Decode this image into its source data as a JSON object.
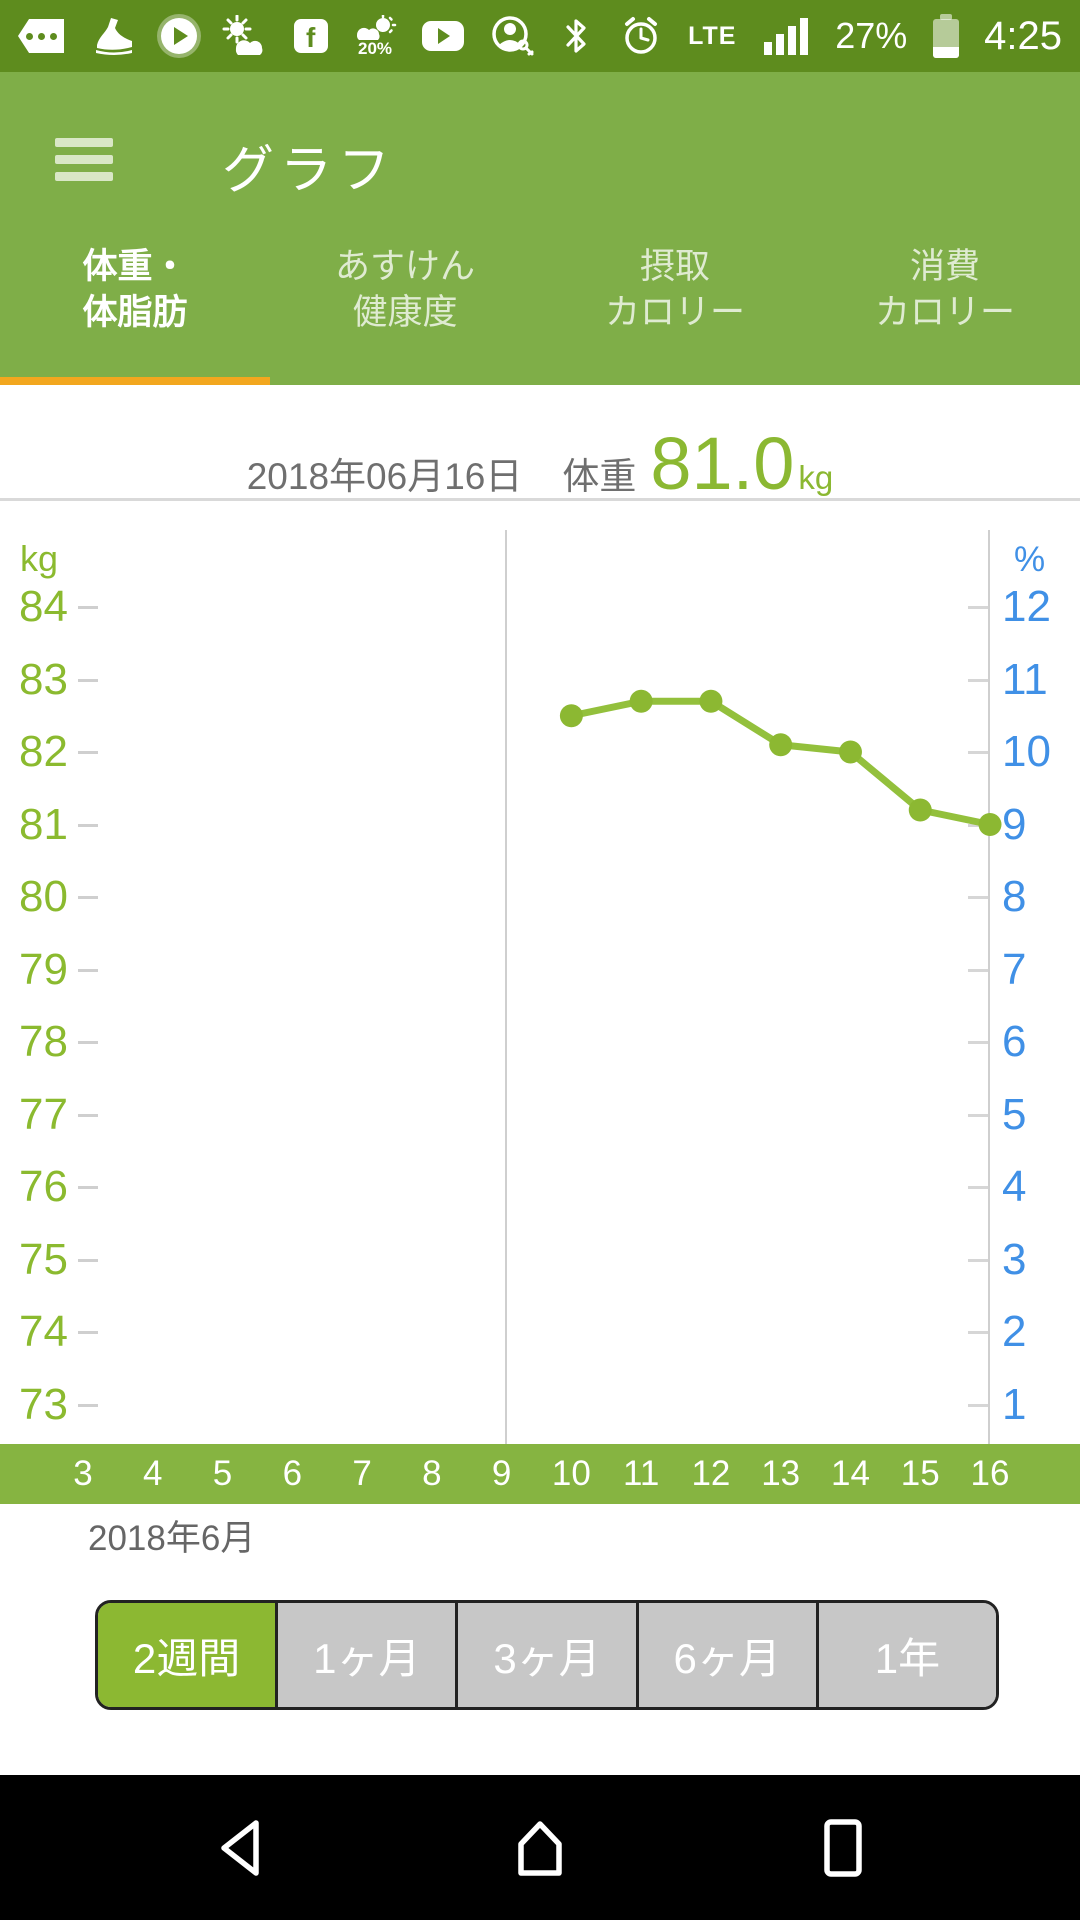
{
  "status_bar": {
    "time": "4:25",
    "battery_percent": "27%",
    "network": "LTE",
    "precipitation": "20%",
    "facebook_letter": "f",
    "icons": [
      "message-dots-icon",
      "shoe-steps-icon",
      "play-circle-icon",
      "sun-cloud-weather-icon",
      "facebook-icon",
      "weather-forecast-20-icon",
      "youtube-icon",
      "account-key-icon",
      "bluetooth-icon",
      "alarm-clock-icon",
      "lte-label",
      "signal-strength-icon",
      "battery-icon"
    ]
  },
  "header": {
    "title": "グラフ"
  },
  "tabs": [
    {
      "id": "weight-bodyfat",
      "label_line1": "体重・",
      "label_line2": "体脂肪",
      "active": true
    },
    {
      "id": "asken-health",
      "label_line1": "あすけん",
      "label_line2": "健康度",
      "active": false
    },
    {
      "id": "intake-calories",
      "label_line1": "摂取",
      "label_line2": "カロリー",
      "active": false
    },
    {
      "id": "burned-calories",
      "label_line1": "消費",
      "label_line2": "カロリー",
      "active": false
    }
  ],
  "summary": {
    "date": "2018年06月16日",
    "weight_label": "体重",
    "weight_value": "81.0",
    "weight_unit": "kg"
  },
  "chart_data": {
    "type": "line",
    "series": [
      {
        "name": "体重",
        "unit": "kg",
        "color": "#8cb832",
        "x": [
          10,
          11,
          12,
          13,
          14,
          15,
          16
        ],
        "values": [
          82.5,
          82.7,
          82.7,
          82.1,
          82.0,
          81.2,
          81.0
        ]
      }
    ],
    "left_axis": {
      "unit": "kg",
      "ticks": [
        84,
        83,
        82,
        81,
        80,
        79,
        78,
        77,
        76,
        75,
        74,
        73
      ],
      "min": 73,
      "max": 84,
      "color": "#8bba2f"
    },
    "right_axis": {
      "unit": "%",
      "ticks": [
        12,
        11,
        10,
        9,
        8,
        7,
        6,
        5,
        4,
        3,
        2,
        1
      ],
      "min": 1,
      "max": 12,
      "color": "#4090e6"
    },
    "x_axis": {
      "visible_days": [
        3,
        4,
        5,
        6,
        7,
        8,
        9,
        10,
        11,
        12,
        13,
        14,
        15,
        16
      ],
      "month_label": "2018年6月"
    },
    "grid": "none",
    "legend": "none"
  },
  "period_buttons": [
    {
      "id": "2w",
      "label": "2週間",
      "selected": true
    },
    {
      "id": "1m",
      "label": "1ヶ月",
      "selected": false
    },
    {
      "id": "3m",
      "label": "3ヶ月",
      "selected": false
    },
    {
      "id": "6m",
      "label": "6ヶ月",
      "selected": false
    },
    {
      "id": "1y",
      "label": "1年",
      "selected": false
    }
  ],
  "nav_bar": {
    "buttons": [
      "back",
      "home",
      "recents"
    ]
  }
}
